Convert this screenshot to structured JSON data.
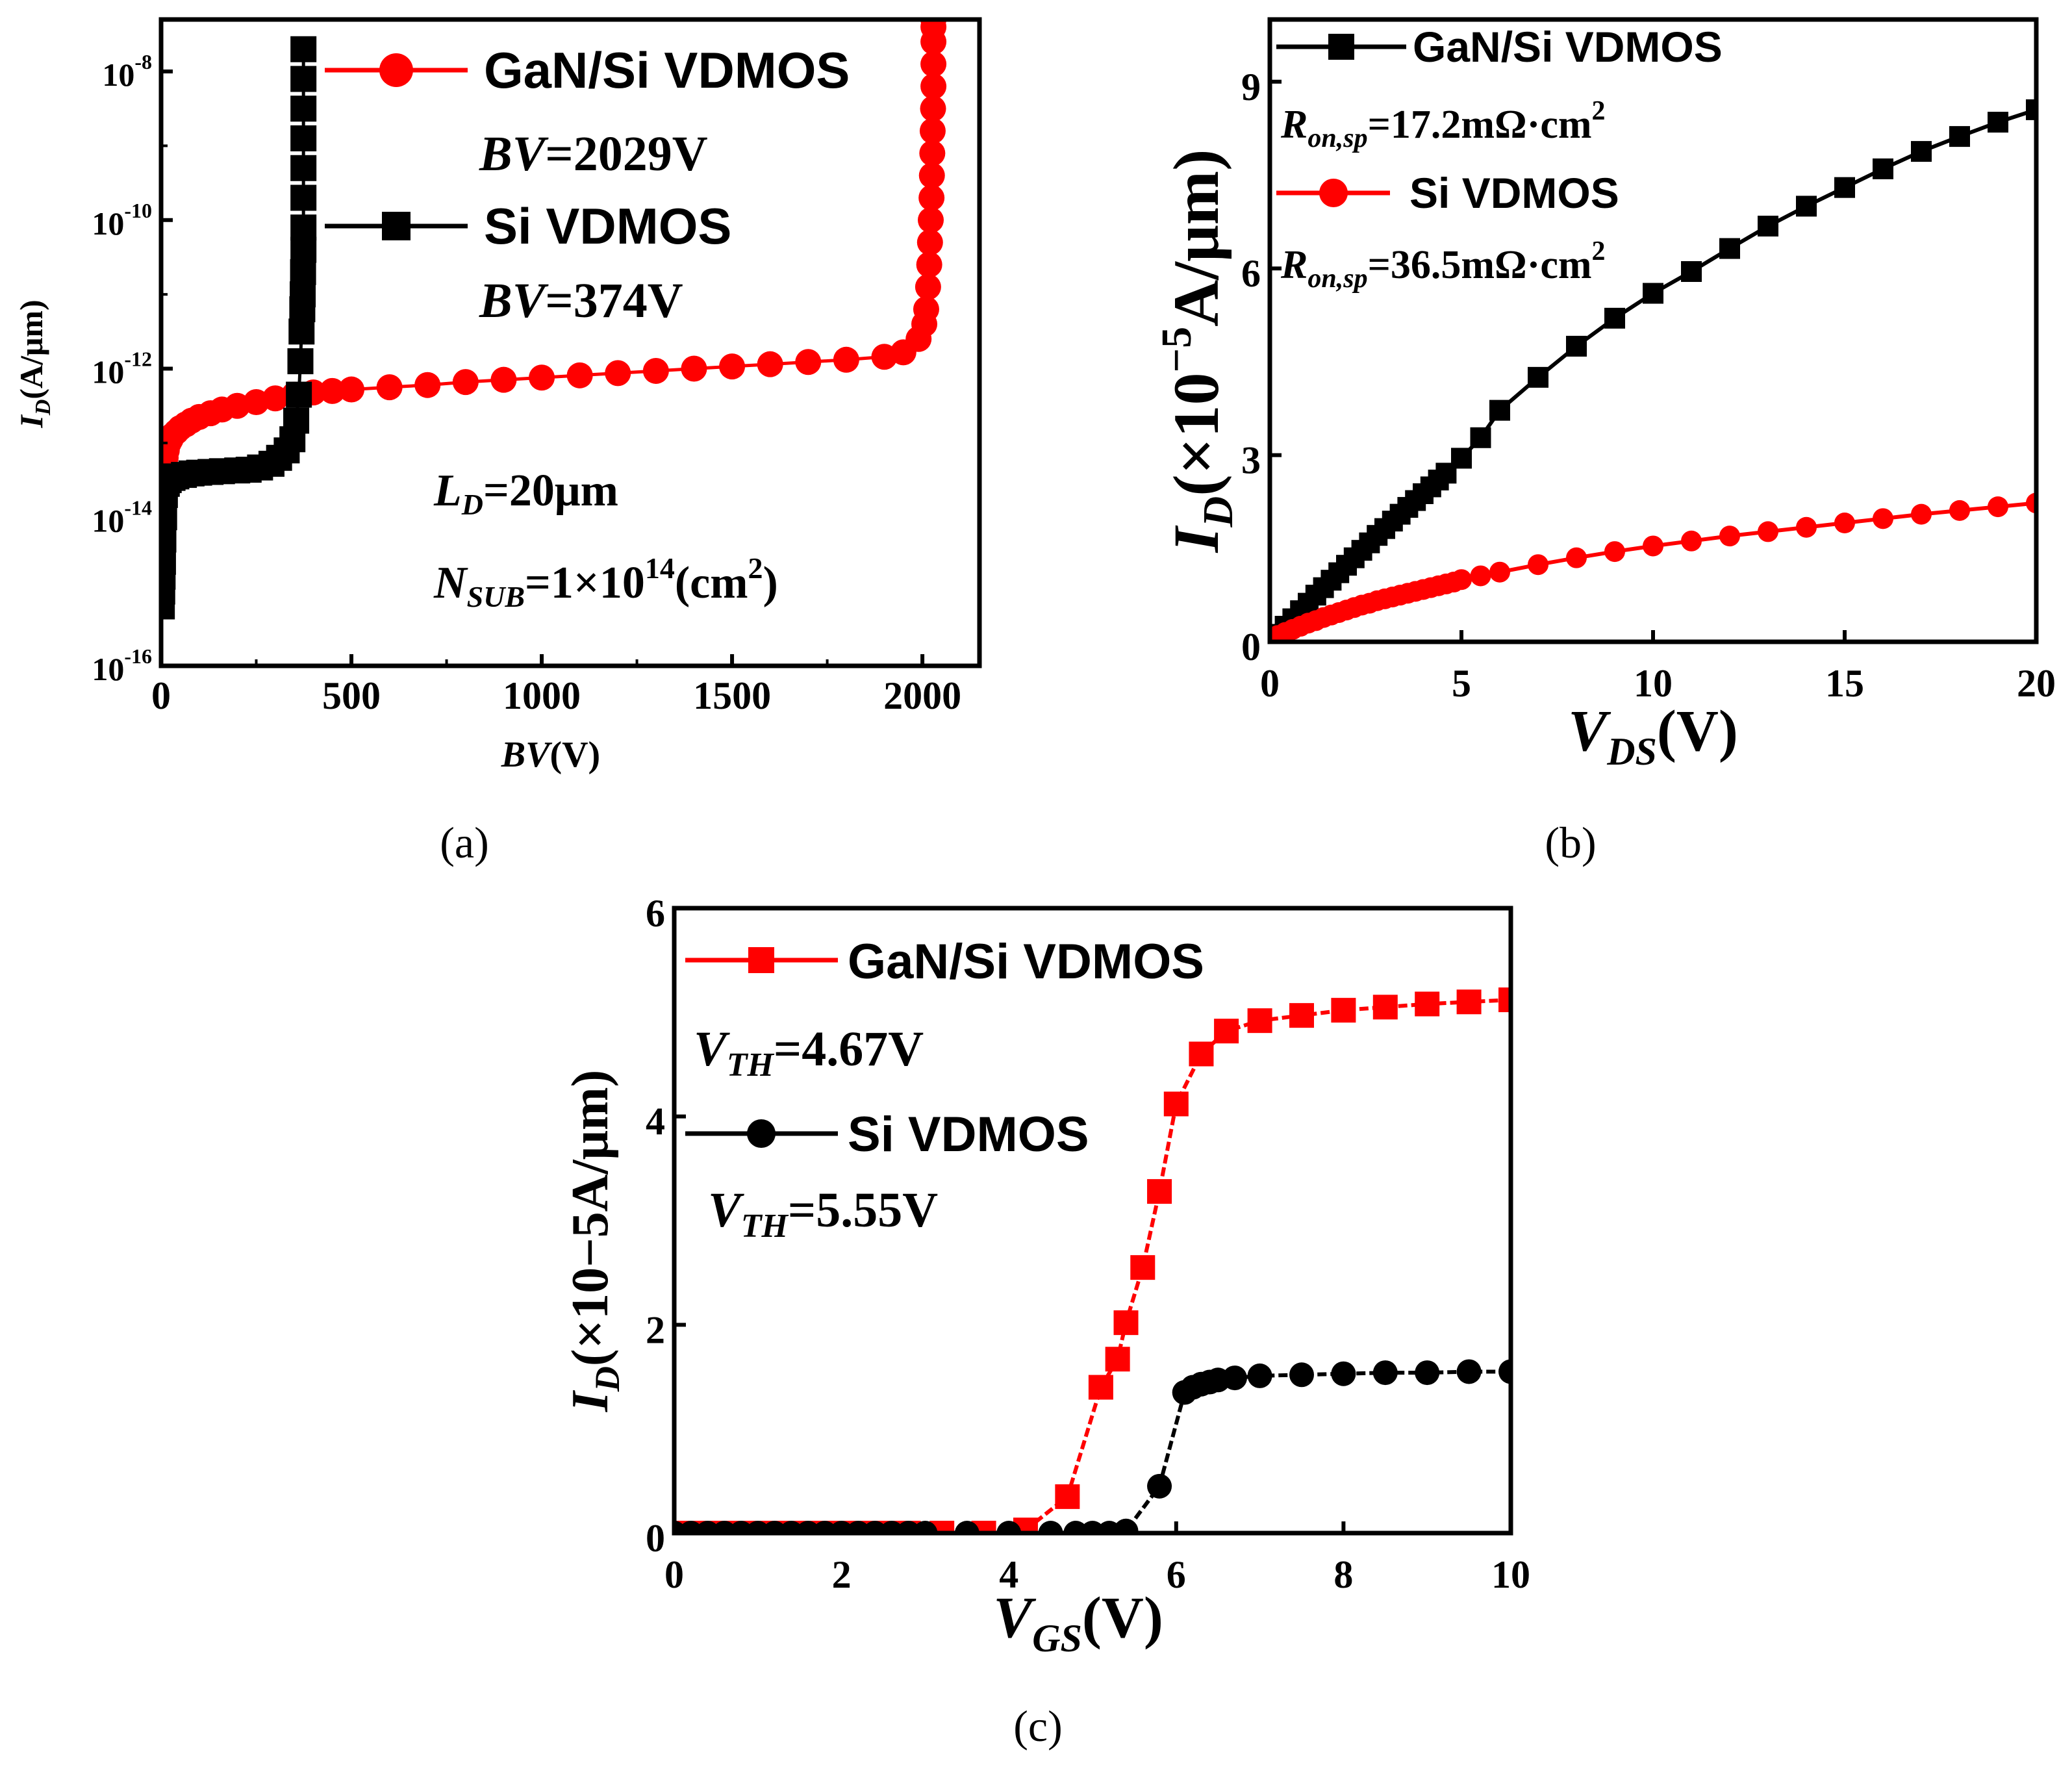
{
  "chart_data": [
    {
      "type": "line",
      "panel_label": "(a)",
      "xlabel": {
        "main": "BV",
        "rest": "(V)"
      },
      "ylabel": {
        "main": "I",
        "sub": "D",
        "rest": "(A/μm)"
      },
      "xlim": [
        0,
        2150
      ],
      "ylim_log10": [
        -16,
        -7.3
      ],
      "xticks": [
        0,
        500,
        1000,
        1500,
        2000
      ],
      "xtick_labels": [
        "0",
        "500",
        "1000",
        "1500",
        "2000"
      ],
      "yticks": [
        -16,
        -14,
        -12,
        -10,
        -8
      ],
      "ytick_base": "10",
      "ytick_exps": [
        "-16",
        "-14",
        "-12",
        "-10",
        "-8"
      ],
      "y_scale": "log",
      "legend": [
        "GaN/Si VDMOS",
        "Si VDMOS"
      ],
      "annotations": {
        "bv_gan": {
          "italic": "BV",
          "rest": "=2029V"
        },
        "bv_si": {
          "italic": "BV",
          "rest": "=374V"
        },
        "ld": {
          "main": "L",
          "sub": "D",
          "rest": "=20μm"
        },
        "nsub": {
          "main": "N",
          "sub": "SUB",
          "mid": "=1×10",
          "sup": "14",
          "rest": "(cm",
          "sup2": "2",
          "end": ")"
        }
      },
      "series": [
        {
          "name": "GaN/Si VDMOS",
          "color": "#ff0000",
          "marker": "circle",
          "x": [
            10,
            12,
            15,
            20,
            25,
            30,
            40,
            50,
            65,
            80,
            100,
            130,
            160,
            200,
            250,
            300,
            350,
            400,
            450,
            500,
            600,
            700,
            800,
            900,
            1000,
            1100,
            1200,
            1300,
            1400,
            1500,
            1600,
            1700,
            1800,
            1900,
            1950,
            1990,
            2005,
            2010,
            2015,
            2018,
            2020,
            2022,
            2024,
            2025,
            2026,
            2027,
            2028,
            2029,
            2029,
            2029,
            2029,
            2029,
            2029,
            2029,
            2029,
            2029,
            2029,
            2029,
            2029
          ],
          "y_log10": [
            -13.3,
            -13.2,
            -13.1,
            -13.0,
            -12.95,
            -12.9,
            -12.85,
            -12.8,
            -12.75,
            -12.7,
            -12.65,
            -12.6,
            -12.55,
            -12.5,
            -12.45,
            -12.4,
            -12.35,
            -12.32,
            -12.3,
            -12.28,
            -12.25,
            -12.22,
            -12.18,
            -12.15,
            -12.12,
            -12.09,
            -12.06,
            -12.03,
            -12.0,
            -11.97,
            -11.94,
            -11.91,
            -11.88,
            -11.84,
            -11.78,
            -11.6,
            -11.4,
            -11.2,
            -10.9,
            -10.6,
            -10.3,
            -10.0,
            -9.7,
            -9.4,
            -9.1,
            -8.8,
            -8.5,
            -8.2,
            -7.9,
            -7.6,
            -7.4,
            -7.3,
            -7.25,
            -7.2,
            -7.15,
            -7.1,
            -7.05,
            -7.02,
            -7.0
          ]
        },
        {
          "name": "Si VDMOS",
          "color": "#000000",
          "marker": "square",
          "x": [
            2,
            3,
            4,
            5,
            6,
            8,
            10,
            15,
            20,
            30,
            40,
            60,
            80,
            100,
            130,
            160,
            200,
            230,
            260,
            290,
            310,
            330,
            345,
            355,
            362,
            366,
            369,
            371,
            372,
            373,
            374,
            374,
            374,
            374,
            374,
            374,
            374,
            374
          ],
          "y_log10": [
            -15.2,
            -15.0,
            -14.8,
            -14.6,
            -14.3,
            -14.0,
            -13.7,
            -13.55,
            -13.5,
            -13.47,
            -13.45,
            -13.43,
            -13.41,
            -13.4,
            -13.39,
            -13.38,
            -13.37,
            -13.36,
            -13.33,
            -13.28,
            -13.2,
            -13.1,
            -12.95,
            -12.7,
            -12.35,
            -11.9,
            -11.5,
            -11.2,
            -11.0,
            -10.7,
            -10.4,
            -10.1,
            -9.7,
            -9.3,
            -8.9,
            -8.5,
            -8.1,
            -7.7
          ]
        }
      ]
    },
    {
      "type": "line",
      "panel_label": "(b)",
      "xlabel": {
        "main": "V",
        "sub": "DS",
        "rest": "(V)"
      },
      "ylabel": {
        "main": "I",
        "sub": "D",
        "mid": "(×10",
        "sup": "−5",
        "rest": "A/μm)"
      },
      "xlim": [
        0,
        20
      ],
      "ylim": [
        0,
        10
      ],
      "xticks": [
        0,
        5,
        10,
        15,
        20
      ],
      "xtick_labels": [
        "0",
        "5",
        "10",
        "15",
        "20"
      ],
      "yticks": [
        0,
        3,
        6,
        9
      ],
      "ytick_labels": [
        "0",
        "3",
        "6",
        "9"
      ],
      "legend": [
        "GaN/Si VDMOS",
        "Si VDMOS"
      ],
      "annotations": {
        "ron_gan": {
          "main": "R",
          "sub": "on,sp",
          "rest": "=17.2mΩ·cm",
          "sup": "2"
        },
        "ron_si": {
          "main": "R",
          "sub": "on,sp",
          "rest": "=36.5mΩ·cm",
          "sup": "2"
        }
      },
      "series": [
        {
          "name": "GaN/Si VDMOS",
          "color": "#000000",
          "marker": "square",
          "x": [
            0,
            0.2,
            0.4,
            0.6,
            0.8,
            1.0,
            1.2,
            1.4,
            1.6,
            1.8,
            2.0,
            2.2,
            2.4,
            2.6,
            2.8,
            3.0,
            3.2,
            3.4,
            3.6,
            3.8,
            4.0,
            4.2,
            4.4,
            4.6,
            5.0,
            5.5,
            6.0,
            7.0,
            8.0,
            9.0,
            10.0,
            11.0,
            12.0,
            13.0,
            14.0,
            15.0,
            16.0,
            17.0,
            18.0,
            19.0,
            20.0
          ],
          "y": [
            0,
            0.12,
            0.25,
            0.37,
            0.5,
            0.62,
            0.75,
            0.87,
            0.99,
            1.11,
            1.23,
            1.35,
            1.47,
            1.59,
            1.71,
            1.82,
            1.94,
            2.05,
            2.16,
            2.27,
            2.38,
            2.49,
            2.6,
            2.71,
            2.95,
            3.28,
            3.72,
            4.25,
            4.75,
            5.2,
            5.6,
            5.95,
            6.32,
            6.68,
            7.0,
            7.3,
            7.6,
            7.88,
            8.12,
            8.35,
            8.55
          ]
        },
        {
          "name": "Si VDMOS",
          "color": "#ff0000",
          "marker": "circle",
          "x": [
            0,
            0.2,
            0.4,
            0.6,
            0.8,
            1.0,
            1.2,
            1.4,
            1.6,
            1.8,
            2.0,
            2.2,
            2.4,
            2.6,
            2.8,
            3.0,
            3.2,
            3.4,
            3.6,
            3.8,
            4.0,
            4.2,
            4.4,
            4.6,
            4.8,
            5.0,
            5.5,
            6.0,
            7.0,
            8.0,
            9.0,
            10.0,
            11.0,
            12.0,
            13.0,
            14.0,
            15.0,
            16.0,
            17.0,
            18.0,
            19.0,
            20.0
          ],
          "y": [
            0.05,
            0.1,
            0.15,
            0.2,
            0.25,
            0.3,
            0.34,
            0.39,
            0.43,
            0.47,
            0.51,
            0.55,
            0.59,
            0.62,
            0.66,
            0.69,
            0.72,
            0.75,
            0.78,
            0.81,
            0.84,
            0.87,
            0.9,
            0.93,
            0.96,
            1.0,
            1.06,
            1.12,
            1.24,
            1.35,
            1.45,
            1.54,
            1.62,
            1.7,
            1.77,
            1.84,
            1.91,
            1.98,
            2.05,
            2.11,
            2.17,
            2.23
          ]
        }
      ]
    },
    {
      "type": "line",
      "panel_label": "(c)",
      "xlabel": {
        "main": "V",
        "sub": "GS",
        "rest": "(V)"
      },
      "ylabel": {
        "main": "I",
        "sub": "D",
        "rest": "(×10−5A/μm)"
      },
      "xlim": [
        0,
        10
      ],
      "ylim": [
        0,
        6
      ],
      "xticks": [
        0,
        2,
        4,
        6,
        8,
        10
      ],
      "xtick_labels": [
        "0",
        "2",
        "4",
        "6",
        "8",
        "10"
      ],
      "yticks": [
        0,
        2,
        4,
        6
      ],
      "ytick_labels": [
        "0",
        "2",
        "4",
        "6"
      ],
      "legend": [
        "GaN/Si VDMOS",
        "Si VDMOS"
      ],
      "annotations": {
        "vth_gan": {
          "main": "V",
          "sub": "TH",
          "rest": "=4.67V"
        },
        "vth_si": {
          "main": "V",
          "sub": "TH",
          "rest": "=5.55V"
        }
      },
      "series": [
        {
          "name": "GaN/Si VDMOS",
          "color": "#ff0000",
          "marker": "square",
          "x": [
            0,
            0.2,
            0.4,
            0.6,
            0.8,
            1.0,
            1.2,
            1.4,
            1.6,
            1.8,
            2.0,
            2.2,
            2.4,
            2.6,
            2.8,
            3.2,
            3.7,
            4.2,
            4.7,
            5.1,
            5.3,
            5.4,
            5.6,
            5.8,
            6.0,
            6.3,
            6.6,
            7.0,
            7.5,
            8.0,
            8.5,
            9.0,
            9.5,
            10.0
          ],
          "y": [
            0,
            0,
            0,
            0,
            0,
            0,
            0,
            0,
            0,
            0,
            0,
            0,
            0,
            0,
            0,
            0,
            0,
            0.03,
            0.35,
            1.4,
            1.67,
            2.02,
            2.55,
            3.28,
            4.12,
            4.6,
            4.82,
            4.92,
            4.97,
            5.02,
            5.05,
            5.08,
            5.1,
            5.12
          ]
        },
        {
          "name": "Si VDMOS",
          "color": "#000000",
          "marker": "circle",
          "x": [
            0,
            0.2,
            0.4,
            0.6,
            0.8,
            1.0,
            1.2,
            1.4,
            1.6,
            1.8,
            2.0,
            2.2,
            2.4,
            2.6,
            2.8,
            3.0,
            3.5,
            4.0,
            4.5,
            4.8,
            5.0,
            5.2,
            5.4,
            5.8,
            6.1,
            6.2,
            6.3,
            6.4,
            6.5,
            6.7,
            7.0,
            7.5,
            8.0,
            8.5,
            9.0,
            9.5,
            10.0
          ],
          "y": [
            0,
            0,
            0,
            0,
            0,
            0,
            0,
            0,
            0,
            0,
            0,
            0,
            0,
            0,
            0,
            0,
            0,
            0,
            0,
            0,
            0,
            0,
            0.02,
            0.45,
            1.35,
            1.4,
            1.43,
            1.45,
            1.47,
            1.49,
            1.51,
            1.52,
            1.53,
            1.54,
            1.54,
            1.55,
            1.55
          ]
        }
      ]
    }
  ]
}
